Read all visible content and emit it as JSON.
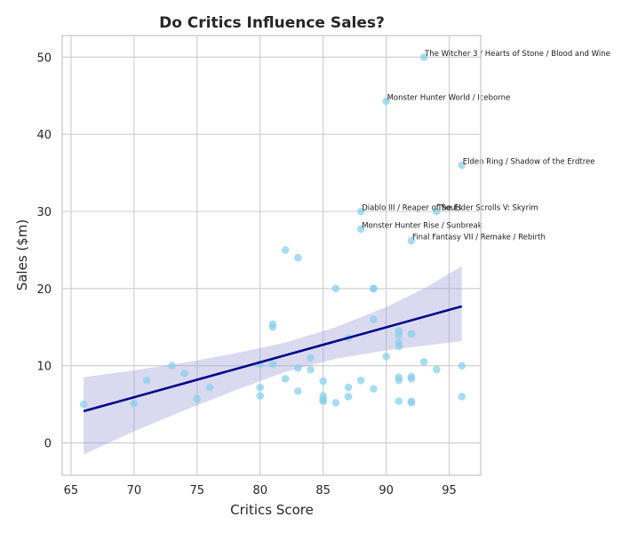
{
  "chart_data": {
    "type": "scatter",
    "title": "Do Critics Influence Sales?",
    "xlabel": "Critics Score",
    "ylabel": "Sales ($m)",
    "xlim": [
      64.3,
      97.5
    ],
    "ylim": [
      -4.2,
      52.8
    ],
    "xticks": [
      65,
      70,
      75,
      80,
      85,
      90,
      95
    ],
    "yticks": [
      0,
      10,
      20,
      30,
      40,
      50
    ],
    "grid": true,
    "colors": {
      "points": "#87ceeb",
      "regression_line": "#00008b",
      "confidence_band": "#9b9fd6"
    },
    "points": [
      {
        "x": 66,
        "y": 5.0
      },
      {
        "x": 70,
        "y": 5.1
      },
      {
        "x": 71,
        "y": 8.1
      },
      {
        "x": 73,
        "y": 10.0
      },
      {
        "x": 74,
        "y": 9.0
      },
      {
        "x": 75,
        "y": 5.7
      },
      {
        "x": 76,
        "y": 7.2
      },
      {
        "x": 80,
        "y": 10.2
      },
      {
        "x": 80,
        "y": 7.2
      },
      {
        "x": 80,
        "y": 6.1
      },
      {
        "x": 81,
        "y": 15.4
      },
      {
        "x": 81,
        "y": 15.0
      },
      {
        "x": 81,
        "y": 10.2
      },
      {
        "x": 82,
        "y": 25.0
      },
      {
        "x": 82,
        "y": 8.3
      },
      {
        "x": 83,
        "y": 24.0
      },
      {
        "x": 83,
        "y": 9.7
      },
      {
        "x": 83,
        "y": 6.7
      },
      {
        "x": 84,
        "y": 11.0
      },
      {
        "x": 84,
        "y": 9.5
      },
      {
        "x": 85,
        "y": 8.0
      },
      {
        "x": 85,
        "y": 6.1
      },
      {
        "x": 85,
        "y": 5.6
      },
      {
        "x": 85,
        "y": 5.4
      },
      {
        "x": 86,
        "y": 20.0
      },
      {
        "x": 86,
        "y": 5.2
      },
      {
        "x": 87,
        "y": 13.6
      },
      {
        "x": 87,
        "y": 7.2
      },
      {
        "x": 87,
        "y": 6.0
      },
      {
        "x": 88,
        "y": 30.0,
        "label": "Diablo III / Reaper of Souls"
      },
      {
        "x": 88,
        "y": 27.7,
        "label": "Monster Hunter Rise / Sunbreak"
      },
      {
        "x": 88,
        "y": 8.1
      },
      {
        "x": 89,
        "y": 20.0
      },
      {
        "x": 89,
        "y": 20.0
      },
      {
        "x": 89,
        "y": 16.0
      },
      {
        "x": 89,
        "y": 7.0
      },
      {
        "x": 90,
        "y": 44.3,
        "label": "Monster Hunter World / Iceborne"
      },
      {
        "x": 90,
        "y": 11.2
      },
      {
        "x": 91,
        "y": 14.5
      },
      {
        "x": 91,
        "y": 14.0
      },
      {
        "x": 91,
        "y": 13.0
      },
      {
        "x": 91,
        "y": 12.5
      },
      {
        "x": 91,
        "y": 8.5
      },
      {
        "x": 91,
        "y": 8.1
      },
      {
        "x": 91,
        "y": 5.4
      },
      {
        "x": 92,
        "y": 26.2,
        "label": "Final Fantasy VII / Remake / Rebirth"
      },
      {
        "x": 92,
        "y": 14.1
      },
      {
        "x": 92,
        "y": 8.6
      },
      {
        "x": 92,
        "y": 8.3
      },
      {
        "x": 92,
        "y": 5.4
      },
      {
        "x": 92,
        "y": 5.2
      },
      {
        "x": 93,
        "y": 50.0,
        "label": "The Witcher 3 / Hearts of Stone / Blood and Wine"
      },
      {
        "x": 93,
        "y": 10.5
      },
      {
        "x": 94,
        "y": 30.0,
        "label": "The Elder Scrolls V: Skyrim"
      },
      {
        "x": 94,
        "y": 9.5
      },
      {
        "x": 96,
        "y": 36.0,
        "label": "Elden Ring / Shadow of the Erdtree"
      },
      {
        "x": 96,
        "y": 10.0
      },
      {
        "x": 96,
        "y": 6.0
      }
    ],
    "regression": {
      "x": [
        66,
        96
      ],
      "y": [
        4.1,
        17.7
      ],
      "ci": [
        {
          "x": 66,
          "lower": -1.5,
          "upper": 8.5
        },
        {
          "x": 70,
          "lower": 1.5,
          "upper": 9.4
        },
        {
          "x": 74,
          "lower": 4.2,
          "upper": 10.4
        },
        {
          "x": 78,
          "lower": 6.8,
          "upper": 11.6
        },
        {
          "x": 82,
          "lower": 9.2,
          "upper": 13.0
        },
        {
          "x": 86,
          "lower": 10.9,
          "upper": 15.0
        },
        {
          "x": 90,
          "lower": 12.0,
          "upper": 17.6
        },
        {
          "x": 93,
          "lower": 12.6,
          "upper": 20.0
        },
        {
          "x": 96,
          "lower": 13.2,
          "upper": 22.9
        }
      ]
    }
  }
}
